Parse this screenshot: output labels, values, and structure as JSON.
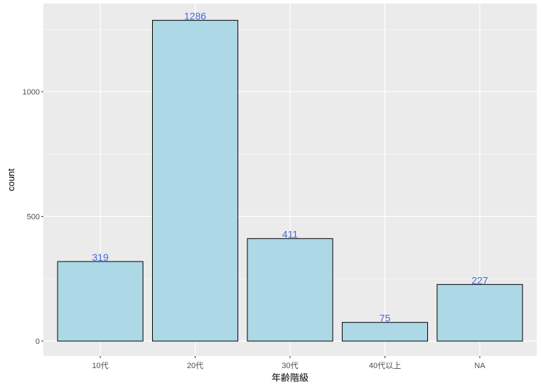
{
  "chart_data": {
    "type": "bar",
    "categories": [
      "10代",
      "20代",
      "30代",
      "40代以上",
      "NA"
    ],
    "values": [
      319,
      1286,
      411,
      75,
      227
    ],
    "data_labels": [
      "319",
      "1286",
      "411",
      "75",
      "227"
    ],
    "xlabel": "年齢階級",
    "ylabel": "count",
    "ylim": [
      -60,
      1350
    ],
    "yticks": [
      0,
      500,
      1000
    ],
    "ytick_labels": [
      "0",
      "500",
      "1000"
    ],
    "grid": true,
    "bar_fill": "#ADD8E6",
    "bar_outline": "#000000",
    "label_color": "#4169E1",
    "panel_background": "#EBEBEB"
  }
}
